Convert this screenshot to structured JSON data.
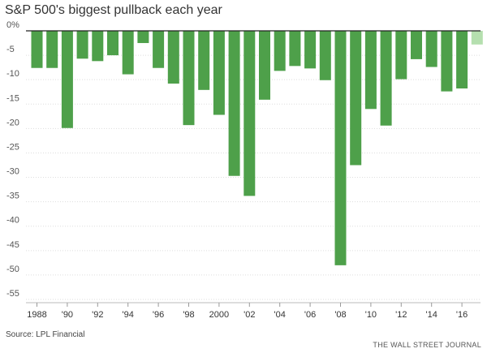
{
  "chart_data": {
    "type": "bar",
    "title": "S&P 500's biggest pullback each year",
    "source": "Source: LPL Financial",
    "publisher": "THE WALL STREET JOURNAL",
    "xlabel": "",
    "ylabel": "",
    "ylim": [
      -55,
      0
    ],
    "y_ticks": [
      {
        "value": 0,
        "label": "0%"
      },
      {
        "value": -5,
        "label": "-5"
      },
      {
        "value": -10,
        "label": "-10"
      },
      {
        "value": -15,
        "label": "-15"
      },
      {
        "value": -20,
        "label": "-20"
      },
      {
        "value": -25,
        "label": "-25"
      },
      {
        "value": -30,
        "label": "-30"
      },
      {
        "value": -35,
        "label": "-35"
      },
      {
        "value": -40,
        "label": "-40"
      },
      {
        "value": -45,
        "label": "-45"
      },
      {
        "value": -50,
        "label": "-50"
      },
      {
        "value": -55,
        "label": "-55"
      }
    ],
    "categories": [
      1988,
      1989,
      1990,
      1991,
      1992,
      1993,
      1994,
      1995,
      1996,
      1997,
      1998,
      1999,
      2000,
      2001,
      2002,
      2003,
      2004,
      2005,
      2006,
      2007,
      2008,
      2009,
      2010,
      2011,
      2012,
      2013,
      2014,
      2015,
      2016,
      2017
    ],
    "values": [
      -7.6,
      -7.6,
      -19.9,
      -5.7,
      -6.2,
      -5.0,
      -8.9,
      -2.5,
      -7.6,
      -10.8,
      -19.3,
      -12.1,
      -17.2,
      -29.7,
      -33.8,
      -14.1,
      -8.2,
      -7.2,
      -7.7,
      -10.1,
      -48.0,
      -27.5,
      -16.0,
      -19.4,
      -9.9,
      -5.8,
      -7.4,
      -12.4,
      -11.8,
      -2.8
    ],
    "x_tick_labels": [
      {
        "category": 1988,
        "label": "1988"
      },
      {
        "category": 1990,
        "label": "'90"
      },
      {
        "category": 1992,
        "label": "'92"
      },
      {
        "category": 1994,
        "label": "'94"
      },
      {
        "category": 1996,
        "label": "'96"
      },
      {
        "category": 1998,
        "label": "'98"
      },
      {
        "category": 2000,
        "label": "2000"
      },
      {
        "category": 2002,
        "label": "'02"
      },
      {
        "category": 2004,
        "label": "'04"
      },
      {
        "category": 2006,
        "label": "'06"
      },
      {
        "category": 2008,
        "label": "'08"
      },
      {
        "category": 2010,
        "label": "'10"
      },
      {
        "category": 2012,
        "label": "'12"
      },
      {
        "category": 2014,
        "label": "'14"
      },
      {
        "category": 2016,
        "label": "'16"
      }
    ],
    "colors": {
      "bar": "#4ea04a",
      "bar_current_year": "#b5dfaf"
    },
    "current_year": 2017,
    "grid": true
  }
}
